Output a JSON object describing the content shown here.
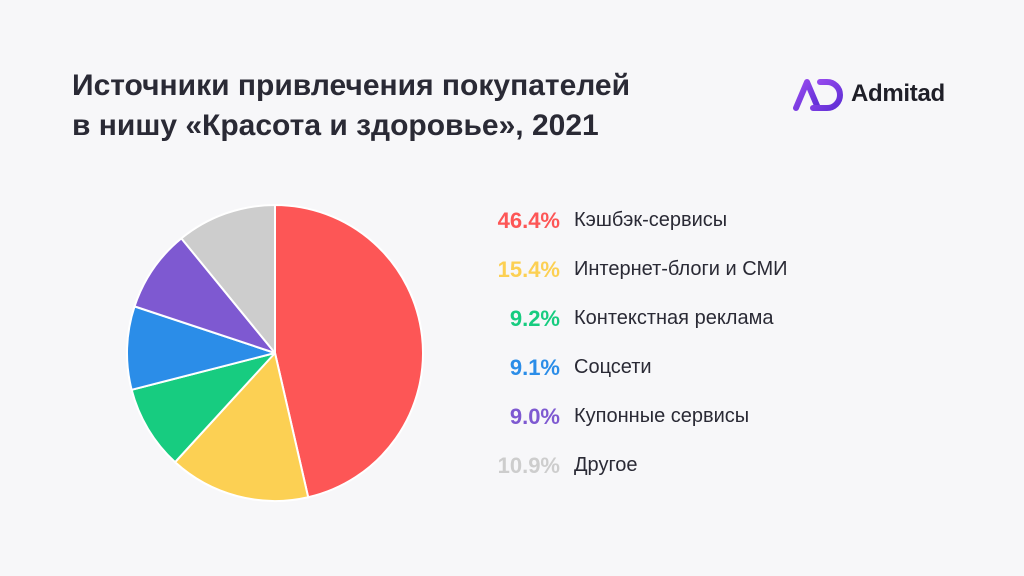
{
  "title_lines": [
    "Источники привлечения покупателей",
    "в нишу «Красота и здоровье», 2021"
  ],
  "logo": {
    "text": "Admitad",
    "icon": "admitad-logo-icon",
    "color": "#7a3fe0"
  },
  "chart_data": {
    "type": "pie",
    "title": "Источники привлечения покупателей в нишу «Красота и здоровье», 2021",
    "slices": [
      {
        "value": 46.4,
        "percent_label": "46.4%",
        "label": "Кэшбэк-сервисы",
        "color": "#fd5656"
      },
      {
        "value": 15.4,
        "percent_label": "15.4%",
        "label": "Интернет-блоги и СМИ",
        "color": "#fcd053"
      },
      {
        "value": 9.2,
        "percent_label": "9.2%",
        "label": "Контекстная реклама",
        "color": "#17cc80"
      },
      {
        "value": 9.1,
        "percent_label": "9.1%",
        "label": "Соцсети",
        "color": "#2b8de8"
      },
      {
        "value": 9.0,
        "percent_label": "9.0%",
        "label": "Купонные сервисы",
        "color": "#7e59d1"
      },
      {
        "value": 10.9,
        "percent_label": "10.9%",
        "label": "Другое",
        "color": "#cdcdcd"
      }
    ],
    "start": "12 o'clock",
    "direction": "clockwise",
    "legend_position": "right"
  }
}
